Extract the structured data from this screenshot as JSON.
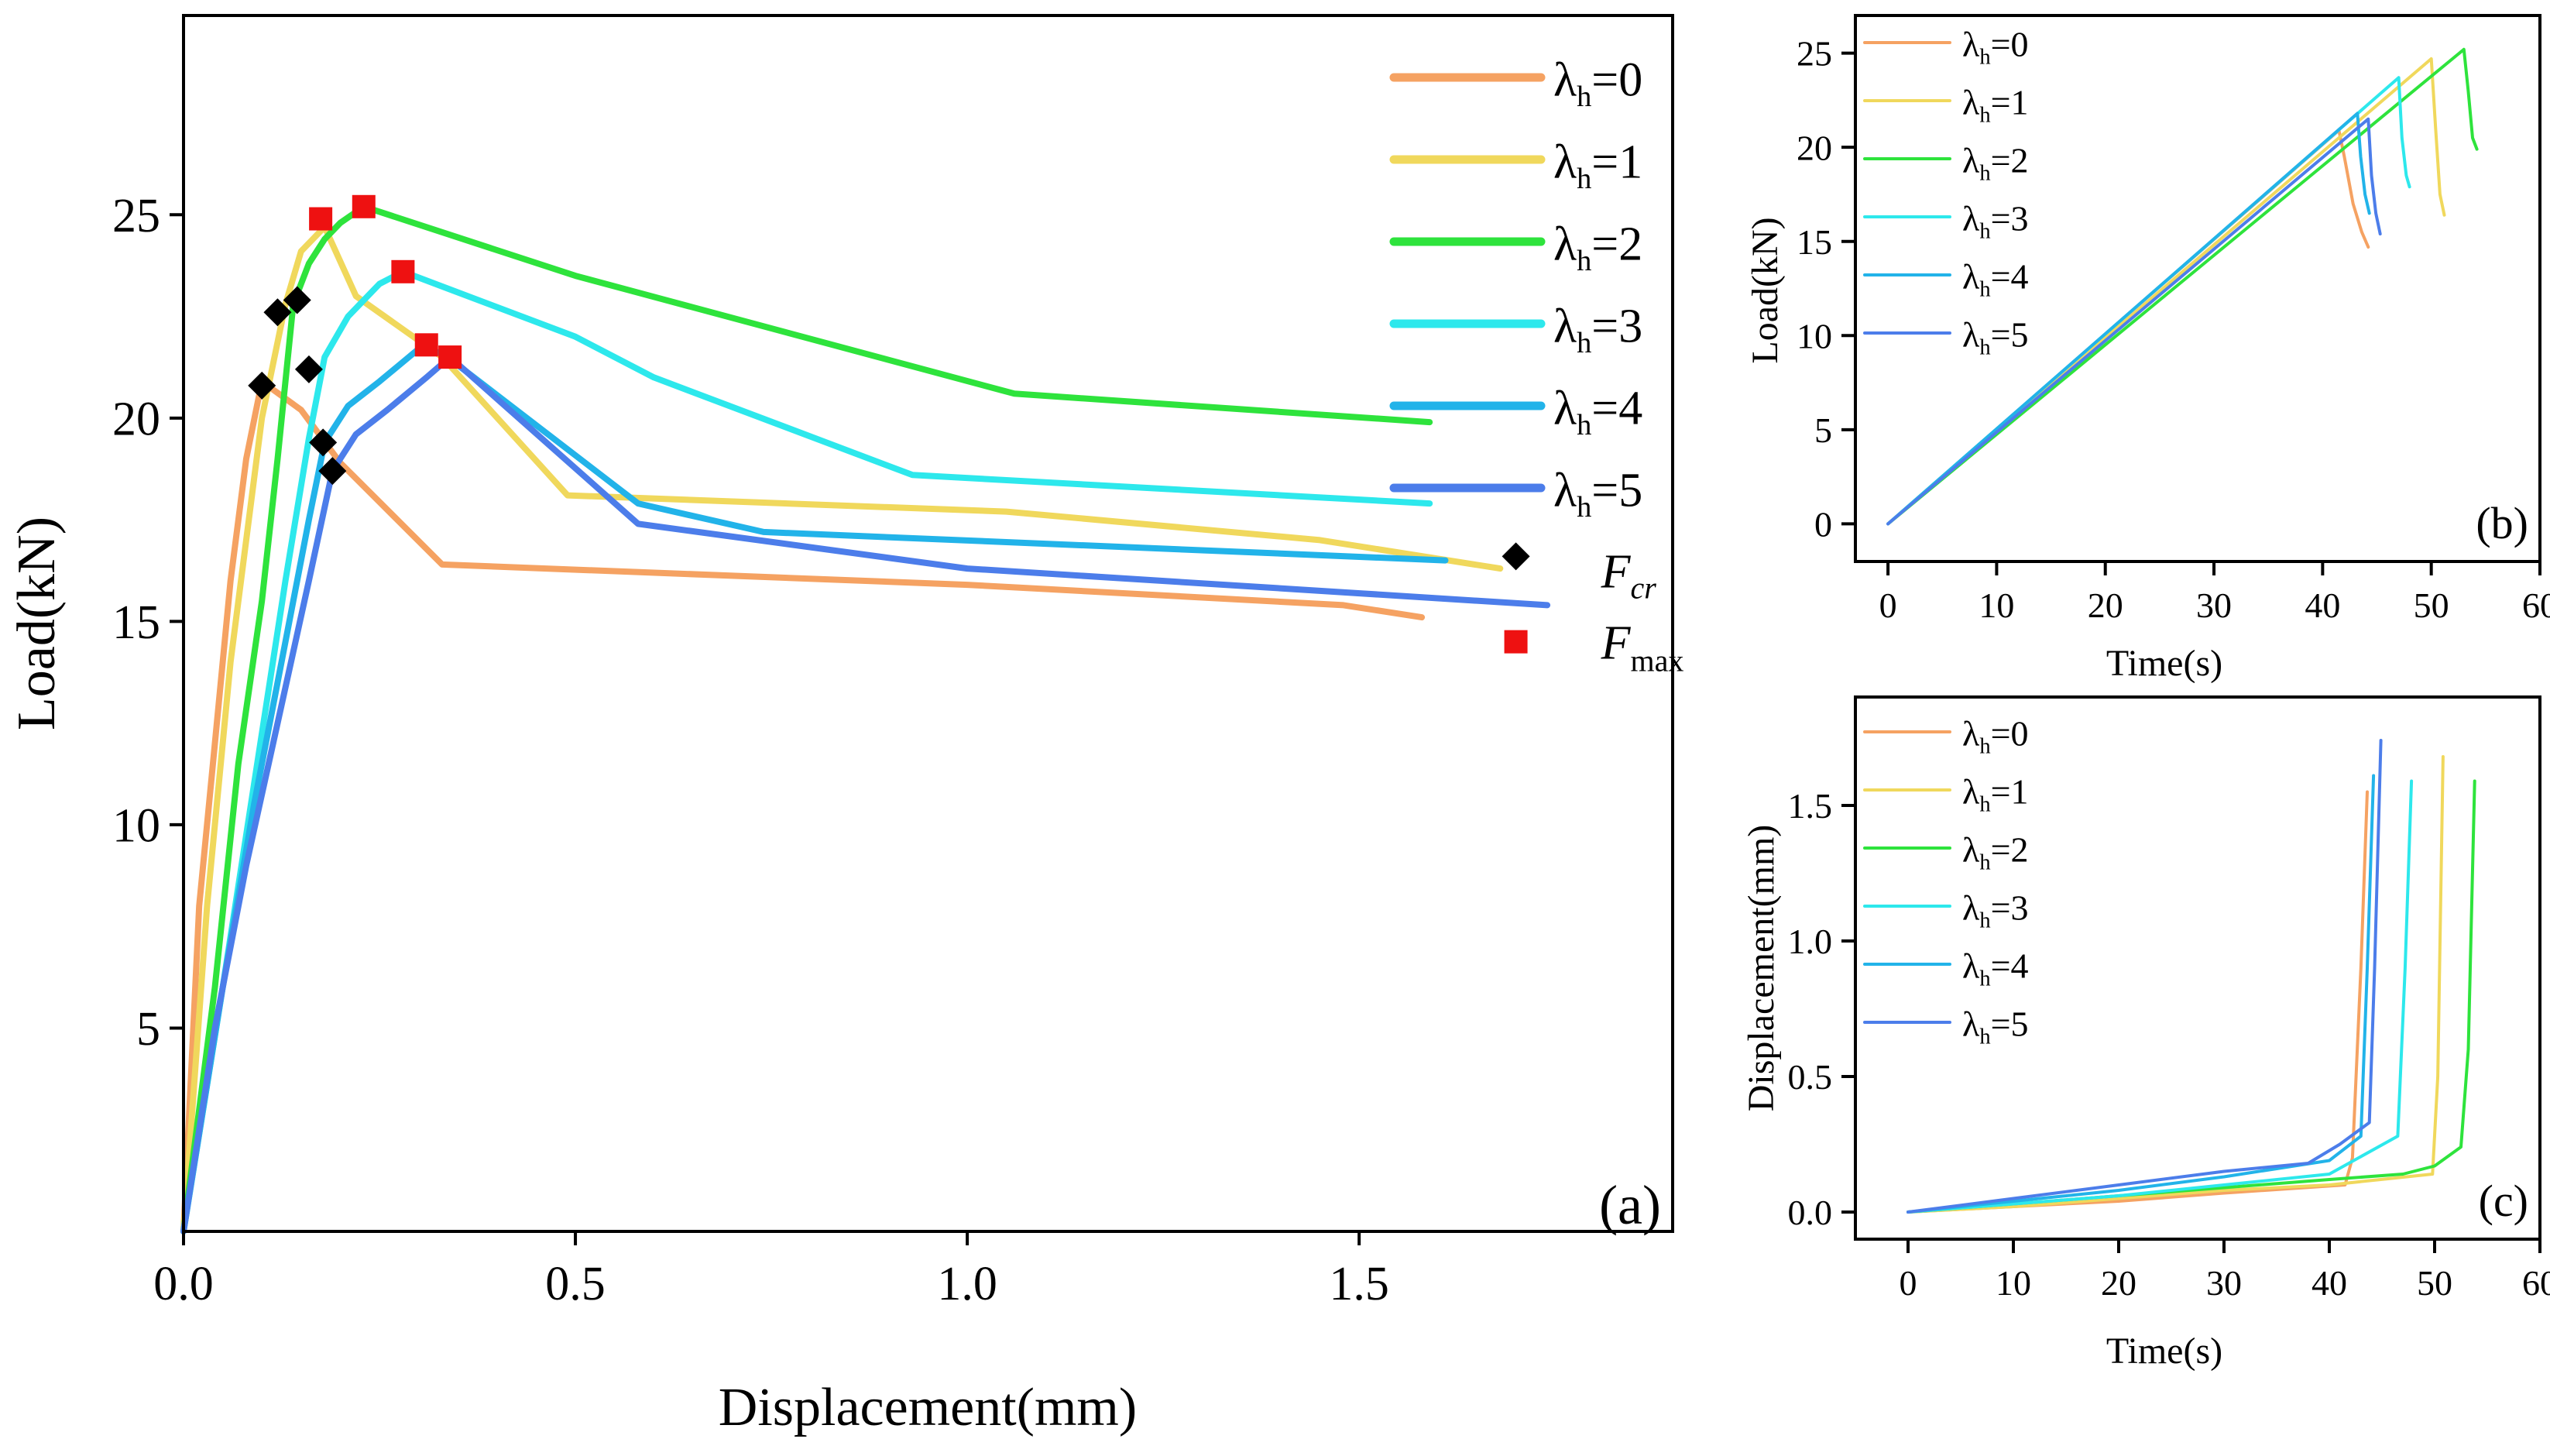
{
  "colors": {
    "l0": "#F5A262",
    "l1": "#F0D85C",
    "l2": "#2EE33C",
    "l3": "#2DE8EC",
    "l4": "#22B3E9",
    "l5": "#4C7DEA",
    "fcr_marker": "#000000",
    "fmax_marker": "#EE1111"
  },
  "chart_data": [
    {
      "id": "a",
      "type": "line",
      "panel_label": "(a)",
      "xlabel": "Displacement(mm)",
      "ylabel": "Load(kN)",
      "xlim": [
        0,
        1.9
      ],
      "ylim": [
        0,
        29.9
      ],
      "xticks": [
        0.0,
        0.5,
        1.0,
        1.5
      ],
      "xtick_labels": [
        "0.0",
        "0.5",
        "1.0",
        "1.5"
      ],
      "yticks": [
        5,
        10,
        15,
        20,
        25
      ],
      "ytick_labels": [
        "5",
        "10",
        "15",
        "20",
        "25"
      ],
      "legend_position": "top-right",
      "series": [
        {
          "name": "λh=0",
          "label_main": "λ",
          "label_sub": "h",
          "label_tail": "=0",
          "color_key": "l0",
          "x": [
            0,
            0.02,
            0.04,
            0.06,
            0.08,
            0.1,
            0.15,
            0.2,
            0.33,
            1.0,
            1.48,
            1.58
          ],
          "y": [
            0,
            8,
            12,
            16,
            19,
            20.9,
            20.2,
            18.9,
            16.4,
            15.9,
            15.4,
            15.1
          ]
        },
        {
          "name": "λh=1",
          "label_main": "λ",
          "label_sub": "h",
          "label_tail": "=1",
          "color_key": "l1",
          "x": [
            0,
            0.03,
            0.06,
            0.1,
            0.13,
            0.15,
            0.18,
            0.22,
            0.33,
            0.49,
            1.05,
            1.45,
            1.68
          ],
          "y": [
            0,
            8,
            14,
            20,
            22.8,
            24.1,
            24.7,
            23.0,
            21.5,
            18.1,
            17.7,
            17.0,
            16.3
          ]
        },
        {
          "name": "λh=2",
          "label_main": "λ",
          "label_sub": "h",
          "label_tail": "=2",
          "color_key": "l2",
          "x": [
            0,
            0.04,
            0.07,
            0.1,
            0.12,
            0.14,
            0.16,
            0.18,
            0.2,
            0.23,
            0.5,
            1.06,
            1.59
          ],
          "y": [
            0,
            6,
            11.5,
            15.5,
            19,
            22.8,
            23.8,
            24.4,
            24.8,
            25.2,
            23.5,
            20.6,
            19.9
          ]
        },
        {
          "name": "λh=3",
          "label_main": "λ",
          "label_sub": "h",
          "label_tail": "=3",
          "color_key": "l3",
          "x": [
            0,
            0.05,
            0.09,
            0.13,
            0.16,
            0.18,
            0.21,
            0.25,
            0.28,
            0.5,
            0.6,
            0.93,
            1.59
          ],
          "y": [
            0,
            6,
            11,
            16,
            19.5,
            21.5,
            22.5,
            23.3,
            23.6,
            22.0,
            21.0,
            18.6,
            17.9
          ]
        },
        {
          "name": "λh=4",
          "label_main": "λ",
          "label_sub": "h",
          "label_tail": "=4",
          "color_key": "l4",
          "x": [
            0,
            0.05,
            0.09,
            0.13,
            0.16,
            0.18,
            0.21,
            0.25,
            0.3,
            0.33,
            0.58,
            0.74,
            1.61
          ],
          "y": [
            0,
            6,
            10.5,
            14.5,
            17.5,
            19.4,
            20.3,
            20.9,
            21.7,
            21.6,
            17.9,
            17.2,
            16.5
          ]
        },
        {
          "name": "λh=5",
          "label_main": "λ",
          "label_sub": "h",
          "label_tail": "=5",
          "color_key": "l5",
          "x": [
            0,
            0.04,
            0.08,
            0.12,
            0.16,
            0.19,
            0.22,
            0.26,
            0.31,
            0.34,
            0.58,
            1.0,
            1.74
          ],
          "y": [
            0,
            5,
            9,
            12.5,
            16,
            18.7,
            19.6,
            20.2,
            21.0,
            21.5,
            17.4,
            16.3,
            15.4
          ]
        }
      ],
      "markers": {
        "fcr_label": "F",
        "fcr_sub": "cr",
        "fmax_label": "F",
        "fmax_sub": "max",
        "fcr_points": [
          [
            0.1,
            20.8
          ],
          [
            0.12,
            22.6
          ],
          [
            0.145,
            22.9
          ],
          [
            0.16,
            21.2
          ],
          [
            0.178,
            19.4
          ],
          [
            0.19,
            18.7
          ]
        ],
        "fmax_points": [
          [
            0.175,
            24.9
          ],
          [
            0.23,
            25.2
          ],
          [
            0.28,
            23.6
          ],
          [
            0.31,
            21.8
          ],
          [
            0.34,
            21.5
          ]
        ],
        "legend_fcr_point": [
          1.7,
          16.6
        ],
        "legend_fmax_point": [
          1.7,
          14.5
        ]
      }
    },
    {
      "id": "b",
      "type": "line",
      "panel_label": "(b)",
      "xlabel": "Time(s)",
      "ylabel": "Load(kN)",
      "xlim": [
        -3,
        60
      ],
      "ylim": [
        -2,
        27
      ],
      "xticks": [
        0,
        10,
        20,
        30,
        40,
        50,
        60
      ],
      "xtick_labels": [
        "0",
        "10",
        "20",
        "30",
        "40",
        "50",
        "60"
      ],
      "yticks": [
        0,
        5,
        10,
        15,
        20,
        25
      ],
      "ytick_labels": [
        "0",
        "5",
        "10",
        "15",
        "20",
        "25"
      ],
      "legend_position": "top-left",
      "series": [
        {
          "name": "λh=0",
          "label_main": "λ",
          "label_sub": "h",
          "label_tail": "=0",
          "color_key": "l0",
          "x": [
            0,
            41.5,
            42,
            42.8,
            43.6,
            44.2
          ],
          "y": [
            0,
            20.9,
            19.5,
            17.0,
            15.5,
            14.7
          ]
        },
        {
          "name": "λh=1",
          "label_main": "λ",
          "label_sub": "h",
          "label_tail": "=1",
          "color_key": "l1",
          "x": [
            0,
            50,
            50.4,
            50.8,
            51.2
          ],
          "y": [
            0,
            24.7,
            21.0,
            17.5,
            16.4
          ]
        },
        {
          "name": "λh=2",
          "label_main": "λ",
          "label_sub": "h",
          "label_tail": "=2",
          "color_key": "l2",
          "x": [
            0,
            53,
            53.4,
            53.8,
            54.2
          ],
          "y": [
            0,
            25.2,
            23.0,
            20.5,
            19.9
          ]
        },
        {
          "name": "λh=3",
          "label_main": "λ",
          "label_sub": "h",
          "label_tail": "=3",
          "color_key": "l3",
          "x": [
            0,
            47,
            47.3,
            47.7,
            48.0
          ],
          "y": [
            0,
            23.7,
            20.5,
            18.5,
            17.9
          ]
        },
        {
          "name": "λh=4",
          "label_main": "λ",
          "label_sub": "h",
          "label_tail": "=4",
          "color_key": "l4",
          "x": [
            0,
            43.2,
            43.5,
            43.9,
            44.3
          ],
          "y": [
            0,
            21.8,
            19.5,
            17.5,
            16.5
          ]
        },
        {
          "name": "λh=5",
          "label_main": "λ",
          "label_sub": "h",
          "label_tail": "=5",
          "color_key": "l5",
          "x": [
            0,
            44.2,
            44.5,
            44.9,
            45.3
          ],
          "y": [
            0,
            21.5,
            18.5,
            16.5,
            15.4
          ]
        }
      ]
    },
    {
      "id": "c",
      "type": "line",
      "panel_label": "(c)",
      "xlabel": "Time(s)",
      "ylabel": "Displacement(mm)",
      "xlim": [
        -5,
        60
      ],
      "ylim": [
        -0.1,
        1.9
      ],
      "xticks": [
        0,
        10,
        20,
        30,
        40,
        50,
        60
      ],
      "xtick_labels": [
        "0",
        "10",
        "20",
        "30",
        "40",
        "50",
        "60"
      ],
      "yticks": [
        0.0,
        0.5,
        1.0,
        1.5
      ],
      "ytick_labels": [
        "0.0",
        "0.5",
        "1.0",
        "1.5"
      ],
      "legend_position": "top-left",
      "series": [
        {
          "name": "λh=0",
          "label_main": "λ",
          "label_sub": "h",
          "label_tail": "=0",
          "color_key": "l0",
          "x": [
            0,
            10,
            20,
            30,
            41.5,
            42.2,
            43.0,
            43.6
          ],
          "y": [
            0,
            0.02,
            0.04,
            0.07,
            0.1,
            0.2,
            0.9,
            1.55
          ]
        },
        {
          "name": "λh=1",
          "label_main": "λ",
          "label_sub": "h",
          "label_tail": "=1",
          "color_key": "l1",
          "x": [
            0,
            10,
            20,
            30,
            40,
            49.8,
            50.3,
            50.8
          ],
          "y": [
            0,
            0.02,
            0.05,
            0.08,
            0.1,
            0.14,
            0.5,
            1.68
          ]
        },
        {
          "name": "λh=2",
          "label_main": "λ",
          "label_sub": "h",
          "label_tail": "=2",
          "color_key": "l2",
          "x": [
            0,
            10,
            20,
            30,
            40,
            47,
            50,
            52.5,
            53.2,
            53.8
          ],
          "y": [
            0,
            0.03,
            0.06,
            0.09,
            0.12,
            0.14,
            0.17,
            0.24,
            0.6,
            1.59
          ]
        },
        {
          "name": "λh=3",
          "label_main": "λ",
          "label_sub": "h",
          "label_tail": "=3",
          "color_key": "l3",
          "x": [
            0,
            10,
            20,
            30,
            40,
            46.5,
            47.2,
            47.8
          ],
          "y": [
            0,
            0.03,
            0.06,
            0.1,
            0.14,
            0.28,
            0.9,
            1.59
          ]
        },
        {
          "name": "λh=4",
          "label_main": "λ",
          "label_sub": "h",
          "label_tail": "=4",
          "color_key": "l4",
          "x": [
            0,
            10,
            20,
            30,
            40,
            43.0,
            43.6,
            44.2
          ],
          "y": [
            0,
            0.04,
            0.08,
            0.13,
            0.19,
            0.28,
            0.9,
            1.61
          ]
        },
        {
          "name": "λh=5",
          "label_main": "λ",
          "label_sub": "h",
          "label_tail": "=5",
          "color_key": "l5",
          "x": [
            0,
            10,
            20,
            30,
            38,
            41,
            43.8,
            44.3,
            44.9
          ],
          "y": [
            0,
            0.05,
            0.1,
            0.15,
            0.18,
            0.25,
            0.33,
            0.9,
            1.74
          ]
        }
      ]
    }
  ]
}
